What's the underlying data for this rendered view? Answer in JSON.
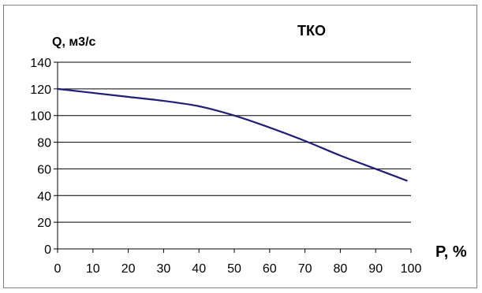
{
  "chart_data": {
    "type": "line",
    "title": "ТКО",
    "xlabel": "P, %",
    "ylabel": "Q, м3/с",
    "xlim": [
      0,
      100
    ],
    "ylim": [
      0,
      140
    ],
    "xticks": [
      0,
      10,
      20,
      30,
      40,
      50,
      60,
      70,
      80,
      90,
      100
    ],
    "yticks": [
      0,
      20,
      40,
      60,
      80,
      100,
      120,
      140
    ],
    "grid": true,
    "legend": "none",
    "series": [
      {
        "color": "#1f1f7a",
        "x": [
          0,
          10,
          20,
          30,
          40,
          50,
          60,
          70,
          80,
          90,
          99
        ],
        "y": [
          120,
          117,
          114,
          111,
          107,
          100,
          91,
          81,
          70,
          60,
          51
        ]
      }
    ]
  }
}
